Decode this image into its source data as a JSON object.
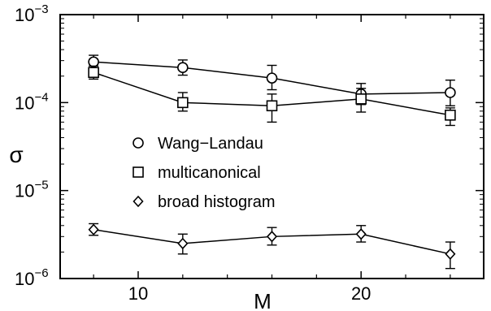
{
  "chart_data": {
    "type": "scatter",
    "title": "",
    "xlabel": "M",
    "ylabel": "σ",
    "xlim": [
      6.5,
      25.5
    ],
    "ylim": [
      1e-06,
      0.001
    ],
    "yscale": "log",
    "grid": false,
    "legend_position": "center-left",
    "x_ticks": [
      10,
      20
    ],
    "x_tick_labels": [
      "10",
      "20"
    ],
    "y_ticks": [
      1e-06,
      1e-05,
      0.0001,
      0.001
    ],
    "y_tick_labels": [
      {
        "base": "10",
        "exp": "−6"
      },
      {
        "base": "10",
        "exp": "−5"
      },
      {
        "base": "10",
        "exp": "−4"
      },
      {
        "base": "10",
        "exp": "−3"
      }
    ],
    "series": [
      {
        "name": "Wang−Landau",
        "marker": "circle",
        "x": [
          8,
          12,
          16,
          20,
          24
        ],
        "y": [
          0.00029,
          0.00025,
          0.00019,
          0.000125,
          0.00013
        ],
        "err_low": [
          0.000245,
          0.000205,
          0.00014,
          9.5e-05,
          9.2e-05
        ],
        "err_high": [
          0.000345,
          0.000305,
          0.000265,
          0.000165,
          0.00018
        ]
      },
      {
        "name": "multicanonical",
        "marker": "square",
        "x": [
          8,
          12,
          16,
          20,
          24
        ],
        "y": [
          0.00022,
          0.0001,
          9.2e-05,
          0.00011,
          7.2e-05
        ],
        "err_low": [
          0.000185,
          8e-05,
          6e-05,
          7.8e-05,
          5.5e-05
        ],
        "err_high": [
          0.00026,
          0.00013,
          0.000125,
          0.000145,
          8.7e-05
        ]
      },
      {
        "name": "broad histogram",
        "marker": "diamond",
        "x": [
          8,
          12,
          16,
          20,
          24
        ],
        "y": [
          3.6e-06,
          2.5e-06,
          3e-06,
          3.2e-06,
          1.9e-06
        ],
        "err_low": [
          3.1e-06,
          1.9e-06,
          2.4e-06,
          2.6e-06,
          1.3e-06
        ],
        "err_high": [
          4.2e-06,
          3.2e-06,
          3.8e-06,
          4e-06,
          2.6e-06
        ]
      }
    ]
  },
  "colors": {
    "ink": "#000000",
    "background": "#ffffff"
  }
}
